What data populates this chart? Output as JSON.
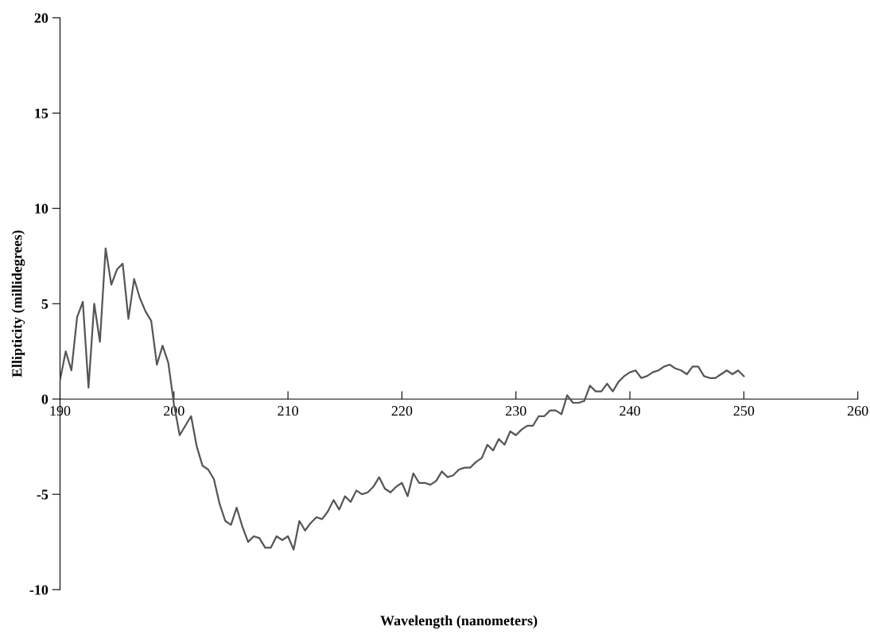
{
  "chart_data": {
    "type": "line",
    "xlabel": "Wavelength (nanometers)",
    "ylabel": "Ellipticity (millidegrees)",
    "xlim": [
      190,
      260
    ],
    "xticks": [
      190,
      200,
      210,
      220,
      230,
      240,
      250,
      260
    ],
    "ylim": [
      -10,
      20
    ],
    "yticks": [
      -10,
      -5,
      0,
      5,
      10,
      15,
      20
    ],
    "grid": false,
    "legend": false,
    "marker": "none",
    "line_style": "solid",
    "x": [
      190,
      190.5,
      191,
      191.5,
      192,
      192.5,
      193,
      193.5,
      194,
      194.5,
      195,
      195.5,
      196,
      196.5,
      197,
      197.5,
      198,
      198.5,
      199,
      199.5,
      200,
      200.5,
      201,
      201.5,
      202,
      202.5,
      203,
      203.5,
      204,
      204.5,
      205,
      205.5,
      206,
      206.5,
      207,
      207.5,
      208,
      208.5,
      209,
      209.5,
      210,
      210.5,
      211,
      211.5,
      212,
      212.5,
      213,
      213.5,
      214,
      214.5,
      215,
      215.5,
      216,
      216.5,
      217,
      217.5,
      218,
      218.5,
      219,
      219.5,
      220,
      220.5,
      221,
      221.5,
      222,
      222.5,
      223,
      223.5,
      224,
      224.5,
      225,
      225.5,
      226,
      226.5,
      227,
      227.5,
      228,
      228.5,
      229,
      229.5,
      230,
      230.5,
      231,
      231.5,
      232,
      232.5,
      233,
      233.5,
      234,
      234.5,
      235,
      235.5,
      236,
      236.5,
      237,
      237.5,
      238,
      238.5,
      239,
      239.5,
      240,
      240.5,
      241,
      241.5,
      242,
      242.5,
      243,
      243.5,
      244,
      244.5,
      245,
      245.5,
      246,
      246.5,
      247,
      247.5,
      248,
      248.5,
      249,
      249.5,
      250
    ],
    "series": [
      {
        "color": "#555555",
        "values": [
          1.0,
          2.5,
          1.5,
          4.3,
          5.1,
          0.6,
          5.0,
          3.0,
          7.9,
          6.0,
          6.8,
          7.1,
          4.2,
          6.3,
          5.3,
          4.6,
          4.1,
          1.8,
          2.8,
          1.9,
          -0.3,
          -1.9,
          -1.4,
          -0.9,
          -2.5,
          -3.5,
          -3.7,
          -4.2,
          -5.5,
          -6.4,
          -6.6,
          -5.7,
          -6.7,
          -7.5,
          -7.2,
          -7.3,
          -7.8,
          -7.8,
          -7.2,
          -7.4,
          -7.2,
          -7.9,
          -6.4,
          -6.9,
          -6.5,
          -6.2,
          -6.3,
          -5.9,
          -5.3,
          -5.8,
          -5.1,
          -5.4,
          -4.8,
          -5.0,
          -4.9,
          -4.6,
          -4.1,
          -4.7,
          -4.9,
          -4.6,
          -4.4,
          -5.1,
          -3.9,
          -4.4,
          -4.4,
          -4.5,
          -4.3,
          -3.8,
          -4.1,
          -4.0,
          -3.7,
          -3.6,
          -3.6,
          -3.3,
          -3.1,
          -2.4,
          -2.7,
          -2.1,
          -2.4,
          -1.7,
          -1.9,
          -1.6,
          -1.4,
          -1.4,
          -0.9,
          -0.9,
          -0.6,
          -0.6,
          -0.8,
          0.2,
          -0.2,
          -0.2,
          -0.1,
          0.7,
          0.4,
          0.4,
          0.8,
          0.4,
          0.9,
          1.2,
          1.4,
          1.5,
          1.1,
          1.2,
          1.4,
          1.5,
          1.7,
          1.8,
          1.6,
          1.5,
          1.3,
          1.7,
          1.7,
          1.2,
          1.1,
          1.1,
          1.3,
          1.5,
          1.3,
          1.5,
          1.2
        ]
      }
    ]
  }
}
